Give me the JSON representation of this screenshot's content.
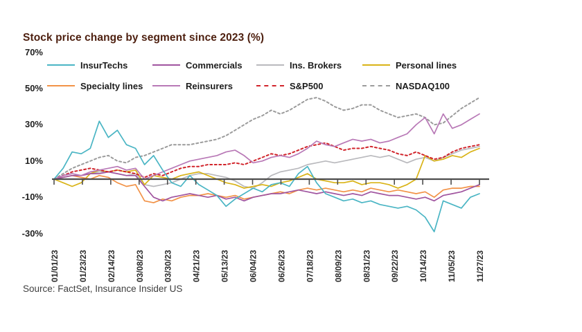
{
  "title": "Stock price change by segment since 2023 (%)",
  "source": "Source: FactSet, Insurance Insider US",
  "colors": {
    "title_text": "#4e2010",
    "axis_line": "#4d4d4d",
    "axis_label_text": "#1f1f1f",
    "insurtechs": "#4ab5c4",
    "commercials": "#a0549f",
    "ins_brokers": "#b9b9bd",
    "personal_lines": "#d9b316",
    "specialty_lines": "#f29246",
    "reinsurers": "#b878b6",
    "sp500": "#d1232a",
    "nasdaq100": "#9b9b9b"
  },
  "chart_data": {
    "type": "line",
    "title": "Stock price change by segment since 2023 (%)",
    "xlabel": "",
    "ylabel": "",
    "grid": false,
    "legend_position": "top",
    "ylim": [
      -35,
      72
    ],
    "y_tick_values": [
      70,
      50,
      30,
      10,
      -10,
      -30
    ],
    "y_tick_labels": [
      "70%",
      "50%",
      "30%",
      "10%",
      "-10%",
      "-30%"
    ],
    "x_tick_labels": [
      "01/01/23",
      "01/23/23",
      "02/14/23",
      "03/08/23",
      "03/30/23",
      "04/21/23",
      "05/13/23",
      "06/04/23",
      "06/26/23",
      "07/18/23",
      "08/09/23",
      "08/31/23",
      "09/22/23",
      "10/14/23",
      "11/05/23",
      "11/27/23"
    ],
    "sampling_note": "values are approximate weekly readings (%) from 01/01/23 to 11/27/23",
    "legend": [
      {
        "name": "InsurTechs",
        "color_key": "insurtechs",
        "dashed": false
      },
      {
        "name": "Commercials",
        "color_key": "commercials",
        "dashed": false
      },
      {
        "name": "Ins. Brokers",
        "color_key": "ins_brokers",
        "dashed": false
      },
      {
        "name": "Personal lines",
        "color_key": "personal_lines",
        "dashed": false
      },
      {
        "name": "Specialty lines",
        "color_key": "specialty_lines",
        "dashed": false
      },
      {
        "name": "Reinsurers",
        "color_key": "reinsurers",
        "dashed": false
      },
      {
        "name": "S&P500",
        "color_key": "sp500",
        "dashed": true
      },
      {
        "name": "NASDAQ100",
        "color_key": "nasdaq100",
        "dashed": true
      }
    ],
    "series": [
      {
        "name": "NASDAQ100",
        "color_key": "nasdaq100",
        "dashed": true,
        "values": [
          0,
          3,
          6,
          8,
          10,
          12,
          13,
          10,
          9,
          12,
          13,
          15,
          17,
          19,
          19,
          19,
          20,
          21,
          22,
          24,
          27,
          30,
          33,
          35,
          38,
          36,
          38,
          41,
          44,
          45,
          43,
          40,
          38,
          39,
          41,
          41,
          38,
          36,
          34,
          35,
          36,
          34,
          30,
          31,
          35,
          39,
          42,
          45
        ]
      },
      {
        "name": "Ins. Brokers",
        "color_key": "ins_brokers",
        "dashed": false,
        "values": [
          0,
          2,
          3,
          2,
          3,
          4,
          4,
          3,
          2,
          3,
          -3,
          -4,
          -3,
          -2,
          0,
          2,
          3,
          3,
          2,
          1,
          -1,
          -4,
          -5,
          -2,
          2,
          4,
          5,
          6,
          8,
          9,
          10,
          9,
          10,
          11,
          12,
          13,
          12,
          13,
          11,
          9,
          11,
          12,
          10,
          12,
          14,
          16,
          17,
          18
        ]
      },
      {
        "name": "Personal lines",
        "color_key": "personal_lines",
        "dashed": false,
        "values": [
          0,
          -2,
          -4,
          -2,
          3,
          5,
          4,
          5,
          4,
          5,
          -3,
          2,
          1,
          0,
          2,
          3,
          4,
          2,
          0,
          -2,
          -3,
          -5,
          -4,
          -3,
          -4,
          -2,
          -1,
          1,
          3,
          0,
          -1,
          -2,
          -2,
          -1,
          -3,
          -2,
          -2,
          -3,
          -5,
          -3,
          0,
          13,
          10,
          11,
          13,
          12,
          15,
          17
        ]
      },
      {
        "name": "Specialty lines",
        "color_key": "specialty_lines",
        "dashed": false,
        "values": [
          0,
          1,
          2,
          1,
          0,
          2,
          1,
          -2,
          -4,
          -3,
          -12,
          -13,
          -11,
          -12,
          -10,
          -9,
          -9,
          -8,
          -9,
          -10,
          -9,
          -11,
          -10,
          -9,
          -8,
          -7,
          -8,
          -6,
          -5,
          -6,
          -5,
          -6,
          -7,
          -6,
          -7,
          -5,
          -6,
          -7,
          -6,
          -7,
          -8,
          -7,
          -10,
          -6,
          -5,
          -5,
          -4,
          -4
        ]
      },
      {
        "name": "Commercials",
        "color_key": "commercials",
        "dashed": false,
        "values": [
          0,
          1,
          2,
          2,
          3,
          3,
          4,
          3,
          2,
          2,
          -4,
          -10,
          -12,
          -10,
          -9,
          -8,
          -9,
          -10,
          -9,
          -11,
          -10,
          -12,
          -10,
          -9,
          -8,
          -8,
          -7,
          -6,
          -7,
          -8,
          -7,
          -8,
          -9,
          -8,
          -9,
          -7,
          -8,
          -9,
          -9,
          -10,
          -11,
          -10,
          -12,
          -9,
          -8,
          -7,
          -5,
          -3
        ]
      },
      {
        "name": "S&P500",
        "color_key": "sp500",
        "dashed": true,
        "values": [
          0,
          2,
          4,
          5,
          6,
          5,
          4,
          5,
          4,
          3,
          1,
          3,
          2,
          4,
          6,
          7,
          7,
          8,
          8,
          8,
          9,
          8,
          10,
          12,
          14,
          13,
          14,
          16,
          18,
          19,
          20,
          18,
          16,
          17,
          17,
          18,
          17,
          16,
          14,
          13,
          15,
          13,
          11,
          12,
          15,
          17,
          18,
          19
        ]
      },
      {
        "name": "Reinsurers",
        "color_key": "reinsurers",
        "dashed": false,
        "values": [
          0,
          2,
          3,
          2,
          4,
          5,
          6,
          7,
          5,
          6,
          0,
          2,
          4,
          6,
          8,
          10,
          11,
          12,
          13,
          15,
          16,
          13,
          9,
          10,
          12,
          13,
          12,
          14,
          17,
          21,
          19,
          18,
          20,
          22,
          21,
          22,
          20,
          21,
          23,
          25,
          30,
          34,
          25,
          36,
          28,
          30,
          33,
          36
        ]
      },
      {
        "name": "InsurTechs",
        "color_key": "insurtechs",
        "dashed": false,
        "values": [
          0,
          6,
          15,
          14,
          17,
          32,
          23,
          27,
          19,
          17,
          8,
          13,
          5,
          -2,
          -4,
          2,
          -3,
          -6,
          -9,
          -15,
          -11,
          -8,
          -5,
          -7,
          -3,
          -2,
          -4,
          3,
          7,
          -2,
          -8,
          -10,
          -12,
          -11,
          -13,
          -12,
          -14,
          -15,
          -16,
          -15,
          -17,
          -21,
          -29,
          -12,
          -14,
          -16,
          -10,
          -8
        ]
      }
    ]
  }
}
